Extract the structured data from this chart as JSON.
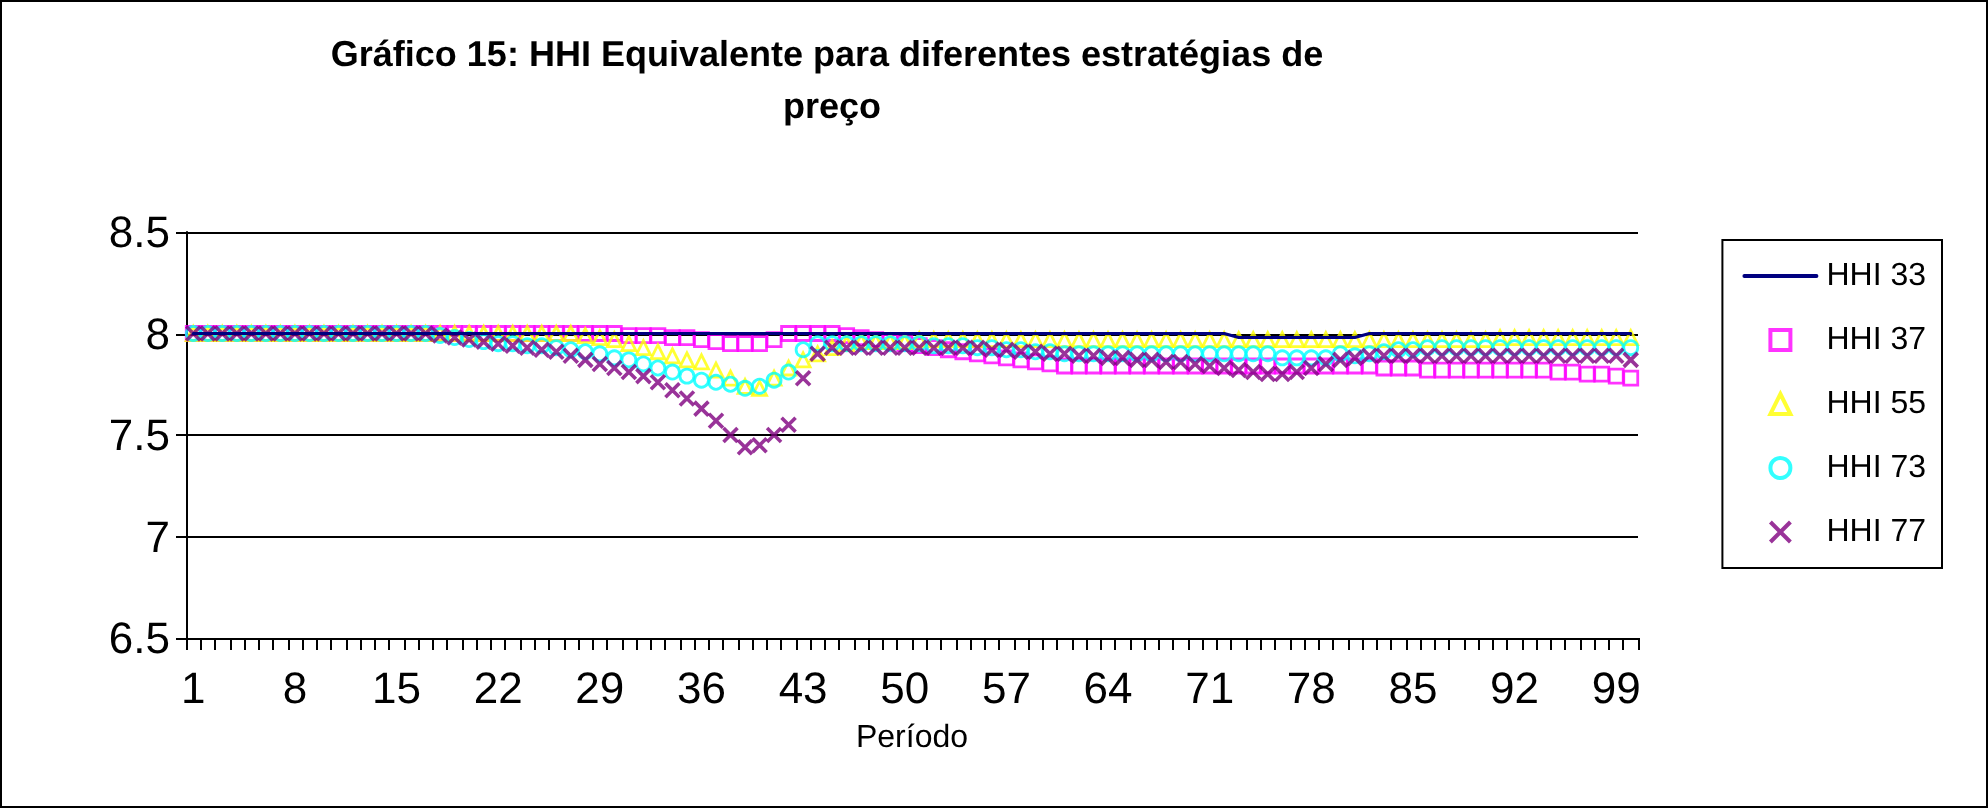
{
  "chart_data": {
    "type": "line",
    "title": "Gráfico 15: HHI Equivalente para diferentes estratégias de preço",
    "xlabel": "Período",
    "categories": [
      "1",
      null,
      null,
      null,
      null,
      null,
      null,
      "8",
      null,
      null,
      null,
      null,
      null,
      null,
      "15",
      null,
      null,
      null,
      null,
      null,
      null,
      "22",
      null,
      null,
      null,
      null,
      null,
      null,
      "29",
      null,
      null,
      null,
      null,
      null,
      null,
      "36",
      null,
      null,
      null,
      null,
      null,
      null,
      "43",
      null,
      null,
      null,
      null,
      null,
      null,
      "50",
      null,
      null,
      null,
      null,
      null,
      null,
      "57",
      null,
      null,
      null,
      null,
      null,
      null,
      "64",
      null,
      null,
      null,
      null,
      null,
      null,
      "71",
      null,
      null,
      null,
      null,
      null,
      null,
      "78",
      null,
      null,
      null,
      null,
      null,
      null,
      "85",
      null,
      null,
      null,
      null,
      null,
      null,
      "92",
      null,
      null,
      null,
      null,
      null,
      null,
      "99",
      null
    ],
    "ylim": [
      6.5,
      8.5
    ],
    "yticks": [
      6.5,
      7,
      7.5,
      8,
      8.5
    ],
    "grid": "y",
    "legend": "right",
    "series": [
      {
        "name": "HHI 33",
        "marker": "none",
        "color": "#000080",
        "values": [
          8,
          8,
          8,
          8,
          8,
          8,
          8,
          8,
          8,
          8,
          8,
          8,
          8,
          8,
          8,
          8,
          8,
          8,
          8,
          8,
          8,
          8,
          8,
          8,
          8,
          8,
          8,
          8,
          8,
          8,
          8,
          8,
          8,
          8,
          8,
          8,
          8,
          8,
          8,
          8,
          8,
          8,
          8,
          8,
          8,
          8,
          8,
          8,
          8,
          8,
          8,
          8,
          8,
          8,
          8,
          8,
          8,
          8,
          8,
          8,
          8,
          8,
          8,
          8,
          8,
          8,
          8,
          8,
          8,
          8,
          8,
          8,
          7.98,
          7.98,
          7.98,
          7.98,
          7.98,
          7.98,
          7.98,
          7.98,
          7.98,
          8,
          8,
          8,
          8,
          8,
          8,
          8,
          8,
          8,
          8,
          8,
          8,
          8,
          8,
          8,
          8,
          8,
          8,
          8
        ]
      },
      {
        "name": "HHI 37",
        "type": "scatter",
        "marker": "square",
        "color": "#ff00ff",
        "values": [
          8,
          8,
          8,
          8,
          8,
          8,
          8,
          8,
          8,
          8,
          8,
          8,
          8,
          8,
          8,
          8,
          8,
          8,
          8,
          8,
          8,
          8,
          8,
          8,
          8,
          8,
          8,
          8,
          8,
          8,
          7.99,
          7.99,
          7.99,
          7.98,
          7.98,
          7.97,
          7.96,
          7.95,
          7.95,
          7.95,
          7.97,
          8,
          8,
          8,
          8,
          7.99,
          7.98,
          7.97,
          7.96,
          7.95,
          7.94,
          7.93,
          7.92,
          7.91,
          7.9,
          7.89,
          7.88,
          7.87,
          7.86,
          7.85,
          7.84,
          7.84,
          7.84,
          7.84,
          7.84,
          7.84,
          7.84,
          7.84,
          7.84,
          7.84,
          7.84,
          7.84,
          7.84,
          7.84,
          7.84,
          7.84,
          7.84,
          7.84,
          7.84,
          7.84,
          7.84,
          7.84,
          7.83,
          7.83,
          7.83,
          7.82,
          7.82,
          7.82,
          7.82,
          7.82,
          7.82,
          7.82,
          7.82,
          7.82,
          7.81,
          7.81,
          7.8,
          7.8,
          7.79,
          7.78
        ]
      },
      {
        "name": "HHI 55",
        "type": "scatter",
        "marker": "triangle",
        "color": "#ffff00",
        "values": [
          8,
          8,
          8,
          8,
          8,
          8,
          8,
          8,
          8,
          8,
          8,
          8,
          8,
          8,
          8,
          8,
          8,
          8,
          8,
          8,
          8,
          8,
          8,
          8,
          8,
          8,
          8,
          7.99,
          7.98,
          7.97,
          7.95,
          7.93,
          7.91,
          7.89,
          7.87,
          7.86,
          7.82,
          7.78,
          7.74,
          7.73,
          7.78,
          7.83,
          7.87,
          7.9,
          7.93,
          7.95,
          7.96,
          7.96,
          7.96,
          7.96,
          7.97,
          7.97,
          7.97,
          7.97,
          7.97,
          7.97,
          7.97,
          7.97,
          7.97,
          7.97,
          7.97,
          7.97,
          7.97,
          7.97,
          7.97,
          7.97,
          7.97,
          7.97,
          7.97,
          7.97,
          7.97,
          7.97,
          7.97,
          7.97,
          7.97,
          7.97,
          7.97,
          7.97,
          7.97,
          7.97,
          7.97,
          7.97,
          7.97,
          7.97,
          7.97,
          7.97,
          7.97,
          7.97,
          7.97,
          7.97,
          7.98,
          7.98,
          7.98,
          7.98,
          7.98,
          7.98,
          7.98,
          7.98,
          7.98,
          7.98
        ]
      },
      {
        "name": "HHI 73",
        "type": "scatter",
        "marker": "circle",
        "color": "#00ffff",
        "values": [
          8,
          8,
          8,
          8,
          8,
          8,
          8,
          8,
          8,
          8,
          8,
          8,
          8,
          8,
          8,
          8,
          8,
          7.99,
          7.98,
          7.97,
          7.96,
          7.95,
          7.95,
          7.94,
          7.94,
          7.93,
          7.92,
          7.91,
          7.9,
          7.88,
          7.87,
          7.85,
          7.83,
          7.81,
          7.79,
          7.77,
          7.76,
          7.75,
          7.73,
          7.74,
          7.77,
          7.81,
          7.92,
          7.95,
          7.95,
          7.95,
          7.95,
          7.95,
          7.95,
          7.95,
          7.95,
          7.94,
          7.94,
          7.94,
          7.93,
          7.93,
          7.92,
          7.92,
          7.91,
          7.91,
          7.9,
          7.9,
          7.9,
          7.9,
          7.9,
          7.9,
          7.9,
          7.9,
          7.9,
          7.9,
          7.9,
          7.9,
          7.9,
          7.9,
          7.9,
          7.88,
          7.88,
          7.88,
          7.88,
          7.9,
          7.89,
          7.9,
          7.91,
          7.92,
          7.92,
          7.93,
          7.93,
          7.93,
          7.93,
          7.93,
          7.93,
          7.93,
          7.93,
          7.93,
          7.93,
          7.93,
          7.93,
          7.93,
          7.93,
          7.93
        ]
      },
      {
        "name": "HHI 77",
        "type": "scatter",
        "marker": "cross",
        "color": "#800080",
        "values": [
          8,
          8,
          8,
          8,
          8,
          8,
          8,
          8,
          8,
          8,
          8,
          8,
          8,
          8,
          8,
          8,
          8,
          7.99,
          7.98,
          7.97,
          7.96,
          7.95,
          7.94,
          7.93,
          7.92,
          7.91,
          7.89,
          7.87,
          7.85,
          7.83,
          7.81,
          7.79,
          7.76,
          7.72,
          7.68,
          7.63,
          7.57,
          7.5,
          7.44,
          7.45,
          7.5,
          7.55,
          7.78,
          7.9,
          7.93,
          7.93,
          7.93,
          7.93,
          7.93,
          7.93,
          7.93,
          7.93,
          7.93,
          7.93,
          7.93,
          7.92,
          7.92,
          7.91,
          7.91,
          7.9,
          7.9,
          7.89,
          7.89,
          7.88,
          7.88,
          7.87,
          7.87,
          7.86,
          7.86,
          7.85,
          7.84,
          7.83,
          7.82,
          7.81,
          7.8,
          7.8,
          7.81,
          7.83,
          7.85,
          7.87,
          7.88,
          7.89,
          7.89,
          7.89,
          7.89,
          7.89,
          7.89,
          7.89,
          7.89,
          7.89,
          7.89,
          7.89,
          7.89,
          7.89,
          7.89,
          7.89,
          7.89,
          7.89,
          7.89,
          7.87
        ]
      }
    ]
  }
}
